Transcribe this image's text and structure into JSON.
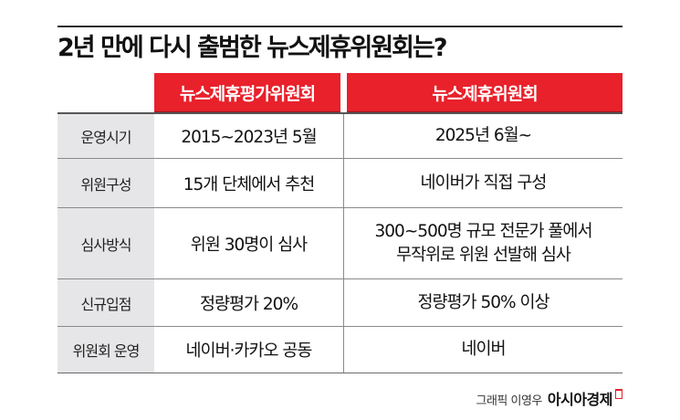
{
  "title": "2년 만에 다시 출범한 뉴스제휴위원회는?",
  "columns": {
    "old": "뉴스제휴평가위원회",
    "new": "뉴스제휴위원회"
  },
  "rows": [
    {
      "label": "운영시기",
      "old": "2015~2023년 5월",
      "new": "2025년 6월~"
    },
    {
      "label": "위원구성",
      "old": "15개 단체에서 추천",
      "new": "네이버가 직접 구성"
    },
    {
      "label": "심사방식",
      "old": "위원 30명이 심사",
      "new_line1": "300~500명 규모 전문가 풀에서",
      "new_line2": "무작위로 위원 선발해 심사"
    },
    {
      "label": "신규입점",
      "old": "정량평가 20%",
      "new": "정량평가 50% 이상"
    },
    {
      "label": "위원회 운영",
      "old": "네이버·카카오 공동",
      "new": "네이버"
    }
  ],
  "credit": {
    "text": "그래픽 이영우",
    "brand": "아시아경제"
  },
  "colors": {
    "header_red": "#e8212b",
    "label_gray": "#e6e6e8",
    "rule": "#2a2a2a"
  }
}
